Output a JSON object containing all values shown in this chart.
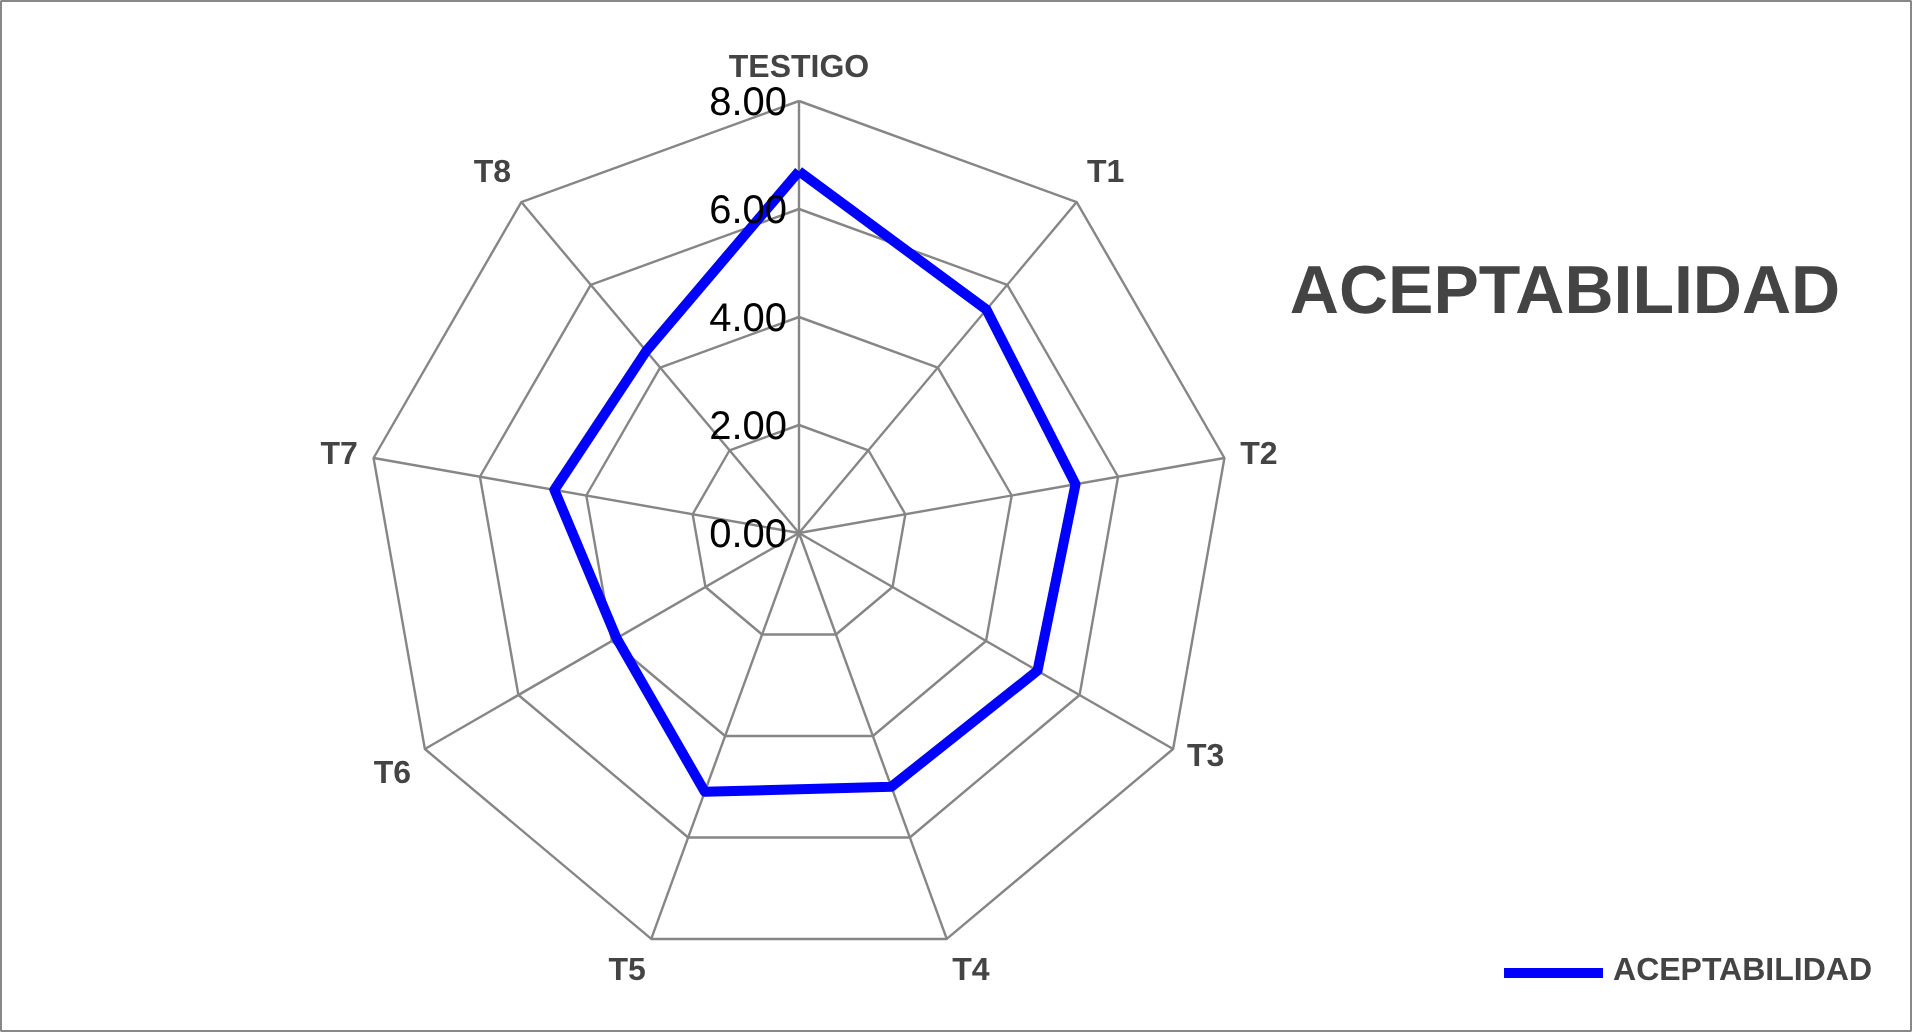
{
  "chart_data": {
    "type": "radar",
    "title": "ACEPTABILIDAD",
    "categories": [
      "TESTIGO",
      "T1",
      "T2",
      "T3",
      "T4",
      "T5",
      "T6",
      "T7",
      "T8"
    ],
    "series": [
      {
        "name": "ACEPTABILIDAD",
        "color": "#0000ff",
        "values": [
          6.7,
          5.4,
          5.2,
          5.1,
          5.0,
          5.1,
          3.9,
          4.6,
          4.4
        ]
      }
    ],
    "ylim": [
      0,
      8
    ],
    "yticks": [
      {
        "value": 0,
        "label": "0.00"
      },
      {
        "value": 2,
        "label": "2.00"
      },
      {
        "value": 4,
        "label": "4.00"
      },
      {
        "value": 6,
        "label": "6.00"
      },
      {
        "value": 8,
        "label": "8.00"
      }
    ],
    "legend": "bottom right",
    "grid": true
  }
}
